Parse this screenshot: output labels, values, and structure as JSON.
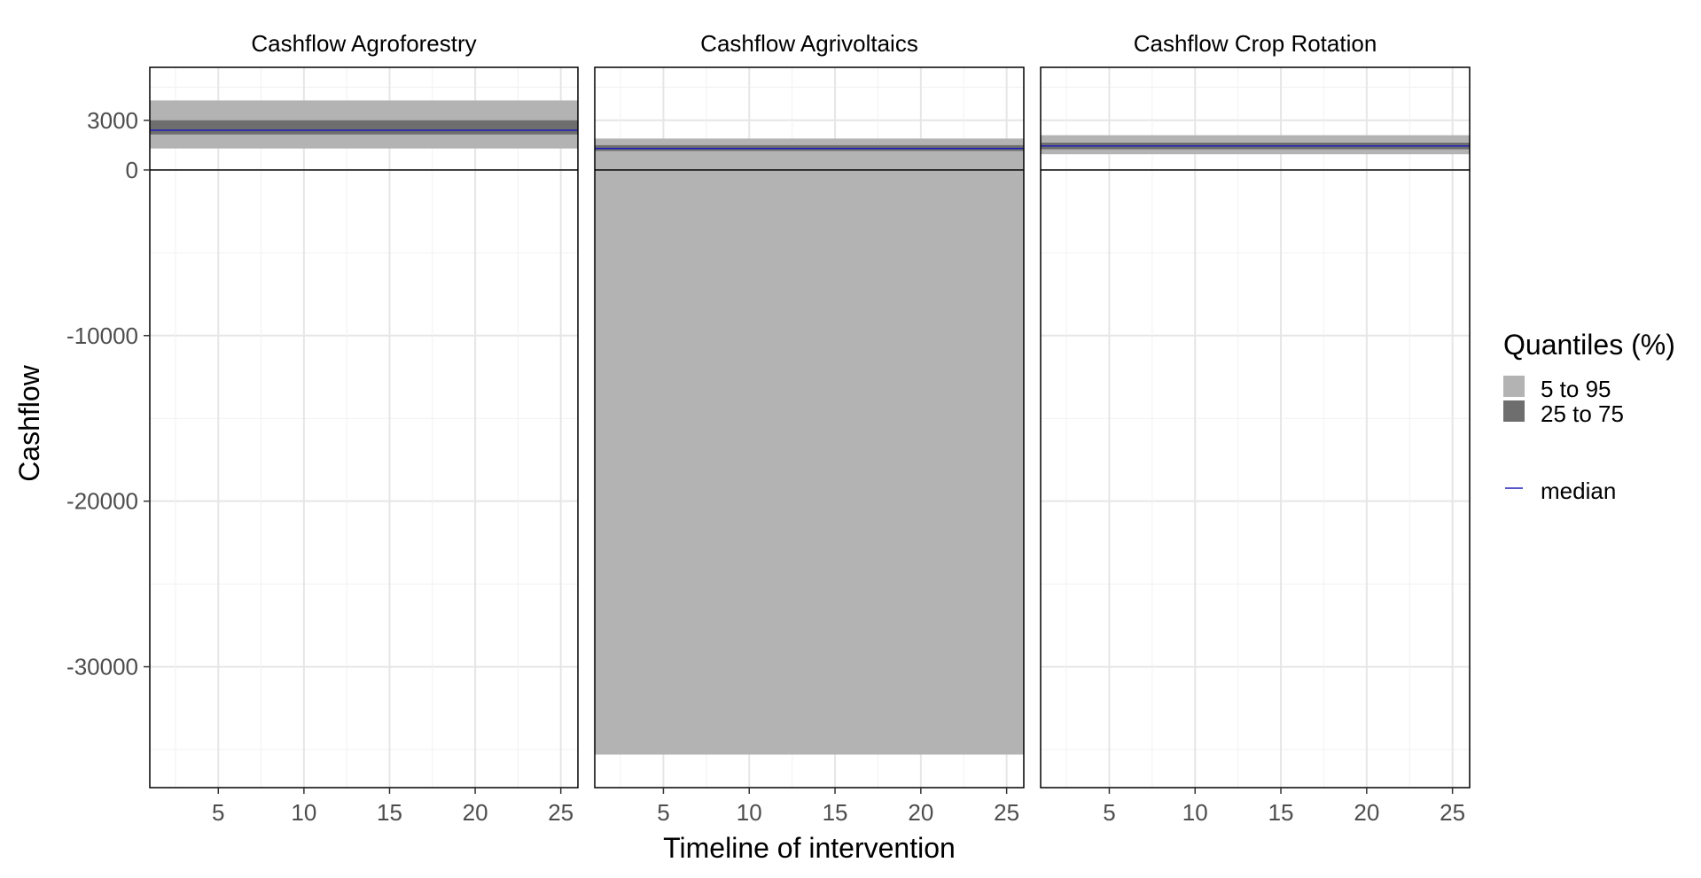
{
  "colors": {
    "background": "#ffffff",
    "panel_border": "#000000",
    "grid_major": "#e6e6e6",
    "grid_minor": "#f1f1f1",
    "band_5_95": "#b3b3b3",
    "band_25_75": "#6e6e6e",
    "median": "#1f1fb8",
    "zero_line": "#000000",
    "tick_label": "#4d4d4d",
    "title_text": "#000000"
  },
  "chart_data": {
    "type": "area",
    "xlabel": "Timeline of intervention",
    "ylabel": "Cashflow",
    "xlim": [
      1,
      26
    ],
    "ylim": [
      -37300,
      6200
    ],
    "x_ticks": [
      5,
      10,
      15,
      20,
      25
    ],
    "y_ticks": [
      3000,
      0,
      -10000,
      -20000,
      -30000
    ],
    "grid": true,
    "zero_line": 0,
    "legend": {
      "title": "Quantiles (%)",
      "position": "right",
      "items": [
        {
          "label": "5 to 95",
          "color_key": "band_5_95",
          "kind": "fill"
        },
        {
          "label": "25 to 75",
          "color_key": "band_25_75",
          "kind": "fill"
        },
        {
          "label": "median",
          "color_key": "median",
          "kind": "line"
        }
      ]
    },
    "panels": [
      {
        "title": "Cashflow Agroforestry",
        "x": [
          1,
          26
        ],
        "q05": [
          1300,
          1300
        ],
        "q25": [
          2150,
          2150
        ],
        "median": [
          2400,
          2400
        ],
        "q75": [
          3000,
          3000
        ],
        "q95": [
          4200,
          4200
        ]
      },
      {
        "title": "Cashflow Agrivoltaics",
        "x": [
          1,
          26
        ],
        "q05": [
          -35300,
          -35300
        ],
        "q25": [
          1150,
          1150
        ],
        "median": [
          1300,
          1300
        ],
        "q75": [
          1500,
          1500
        ],
        "q95": [
          1900,
          1900
        ]
      },
      {
        "title": "Cashflow Crop Rotation",
        "x": [
          1,
          26
        ],
        "q05": [
          950,
          950
        ],
        "q25": [
          1250,
          1250
        ],
        "median": [
          1450,
          1450
        ],
        "q75": [
          1650,
          1650
        ],
        "q95": [
          2100,
          2100
        ]
      }
    ]
  }
}
